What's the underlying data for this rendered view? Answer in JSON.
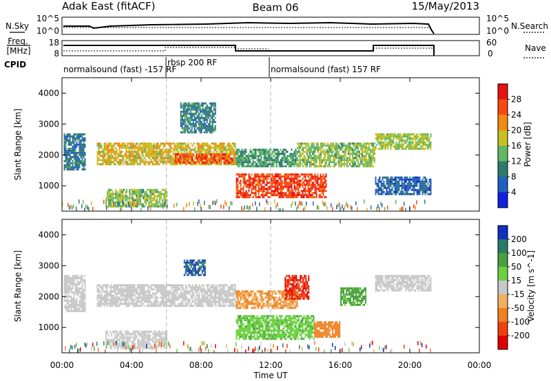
{
  "header": {
    "station": "Adak East (fitACF)",
    "beam": "Beam 06",
    "date": "15/May/2013"
  },
  "top_panels": {
    "nsky_label": "N.Sky",
    "nsky_ticks": [
      "10^5",
      "10^0"
    ],
    "nsearch_label": "N.Search",
    "nsearch_ticks": [
      "10^5",
      "10^0"
    ],
    "freq_label_1": "Freq.",
    "freq_label_2": "[MHz]",
    "freq_ticks": [
      "18",
      "8"
    ],
    "nave_label": "Nave",
    "nave_ticks": [
      "60",
      "0"
    ],
    "cpid_label": "CPID",
    "cpid_segments": [
      {
        "label": "normalsound (fast) -157 RF",
        "start": 0,
        "end": 6
      },
      {
        "label": "rbsp 200 RF",
        "start": 6,
        "end": 12
      },
      {
        "label": "normalsound (fast) 157 RF",
        "start": 12,
        "end": 24
      }
    ]
  },
  "chart_data": [
    {
      "type": "heatmap",
      "title": "",
      "ylabel": "Slant Range [km]",
      "xlabel": "",
      "xlim": [
        0,
        24
      ],
      "ylim": [
        180,
        4500
      ],
      "yticks": [
        "1000",
        "2000",
        "3000",
        "4000"
      ],
      "colorbar": {
        "label": "Power [dB]",
        "ticks": [
          "4",
          "8",
          "12",
          "16",
          "20",
          "24",
          "28"
        ],
        "colors": [
          "#1020e0",
          "#2060c0",
          "#307a70",
          "#60b860",
          "#c8c020",
          "#f08a10",
          "#f84a10",
          "#e81010"
        ]
      },
      "echo_regions": [
        {
          "t0": 0.1,
          "t1": 1.3,
          "r0": 1500,
          "r1": 2700,
          "dB": 9
        },
        {
          "t0": 2.0,
          "t1": 10.0,
          "r0": 1700,
          "r1": 2400,
          "dB": 19
        },
        {
          "t0": 6.5,
          "t1": 9.8,
          "r0": 1750,
          "r1": 2050,
          "dB": 26
        },
        {
          "t0": 2.5,
          "t1": 6.0,
          "r0": 350,
          "r1": 900,
          "dB": 15
        },
        {
          "t0": 6.8,
          "t1": 8.8,
          "r0": 2700,
          "r1": 3700,
          "dB": 10
        },
        {
          "t0": 10.0,
          "t1": 15.2,
          "r0": 600,
          "r1": 1400,
          "dB": 27
        },
        {
          "t0": 10.0,
          "t1": 13.5,
          "r0": 1600,
          "r1": 2200,
          "dB": 12
        },
        {
          "t0": 13.5,
          "t1": 18.0,
          "r0": 1600,
          "r1": 2400,
          "dB": 15
        },
        {
          "t0": 18.0,
          "t1": 21.2,
          "r0": 2200,
          "r1": 2700,
          "dB": 16
        },
        {
          "t0": 18.0,
          "t1": 21.2,
          "r0": 700,
          "r1": 1300,
          "dB": 7
        }
      ]
    },
    {
      "type": "heatmap",
      "title": "",
      "ylabel": "Slant Range [km]",
      "xlabel": "Time UT",
      "xlim": [
        0,
        24
      ],
      "ylim": [
        180,
        4500
      ],
      "yticks": [
        "1000",
        "2000",
        "3000",
        "4000"
      ],
      "xticks": [
        "00:00",
        "04:00",
        "08:00",
        "12:00",
        "16:00",
        "20:00",
        "00:00"
      ],
      "colorbar": {
        "label": "Velocity [m s^-1]",
        "ticks": [
          "200",
          "100",
          "50",
          "15",
          "-15",
          "-50",
          "-100",
          "-200"
        ],
        "colors": [
          "#1030c0",
          "#2a7a6a",
          "#4aa040",
          "#6cd040",
          "#c8c8c8",
          "#f0b060",
          "#f08020",
          "#f04010",
          "#e00000"
        ]
      },
      "echo_regions": [
        {
          "t0": 0.1,
          "t1": 1.3,
          "r0": 1500,
          "r1": 2700,
          "v": 0
        },
        {
          "t0": 2.0,
          "t1": 10.0,
          "r0": 1700,
          "r1": 2400,
          "v": 0
        },
        {
          "t0": 2.5,
          "t1": 6.0,
          "r0": 350,
          "r1": 900,
          "v": 0
        },
        {
          "t0": 7.0,
          "t1": 8.2,
          "r0": 2700,
          "r1": 3200,
          "v": 200
        },
        {
          "t0": 10.0,
          "t1": 14.5,
          "r0": 600,
          "r1": 1400,
          "v": 40
        },
        {
          "t0": 14.5,
          "t1": 16.0,
          "r0": 700,
          "r1": 1200,
          "v": -80
        },
        {
          "t0": 10.0,
          "t1": 13.5,
          "r0": 1600,
          "r1": 2200,
          "v": -50
        },
        {
          "t0": 12.8,
          "t1": 14.2,
          "r0": 1900,
          "r1": 2700,
          "v": -200
        },
        {
          "t0": 16.0,
          "t1": 17.5,
          "r0": 1700,
          "r1": 2300,
          "v": 60
        },
        {
          "t0": 18.0,
          "t1": 21.2,
          "r0": 2200,
          "r1": 2700,
          "v": 0
        }
      ]
    }
  ]
}
